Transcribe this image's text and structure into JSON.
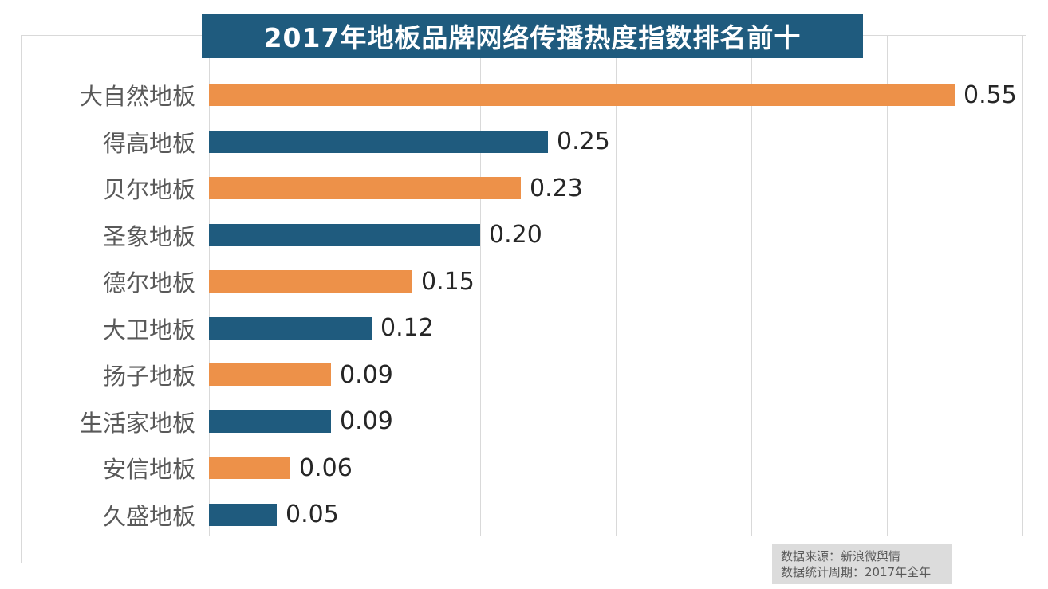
{
  "title": "2017年地板品牌网络传播热度指数排名前十",
  "footer": {
    "source": "数据来源：新浪微舆情",
    "period": "数据统计周期：2017年全年"
  },
  "colors": {
    "orange": "#ed9149",
    "blue": "#1f5b7e",
    "title_bg": "#1f5b7e",
    "title_text": "#ffffff",
    "gridline": "#d9d9d9",
    "category_label": "#595959",
    "value_label": "#262626",
    "footer_bg": "#dcdcdc",
    "footer_text": "#595959"
  },
  "chart_data": {
    "type": "bar",
    "orientation": "horizontal",
    "title": "2017年地板品牌网络传播热度指数排名前十",
    "categories": [
      "大自然地板",
      "得高地板",
      "贝尔地板",
      "圣象地板",
      "德尔地板",
      "大卫地板",
      "扬子地板",
      "生活家地板",
      "安信地板",
      "久盛地板"
    ],
    "values": [
      0.55,
      0.25,
      0.23,
      0.2,
      0.15,
      0.12,
      0.09,
      0.09,
      0.06,
      0.05
    ],
    "value_labels": [
      "0.55",
      "0.25",
      "0.23",
      "0.20",
      "0.15",
      "0.12",
      "0.09",
      "0.09",
      "0.06",
      "0.05"
    ],
    "bar_colors": [
      "#ed9149",
      "#1f5b7e",
      "#ed9149",
      "#1f5b7e",
      "#ed9149",
      "#1f5b7e",
      "#ed9149",
      "#1f5b7e",
      "#ed9149",
      "#1f5b7e"
    ],
    "xlabel": "",
    "ylabel": "",
    "xlim": [
      0,
      0.6
    ],
    "gridline_step": 0.1,
    "grid": true,
    "legend": false,
    "data_labels": true,
    "source": "数据来源：新浪微舆情",
    "period": "数据统计周期：2017年全年"
  }
}
